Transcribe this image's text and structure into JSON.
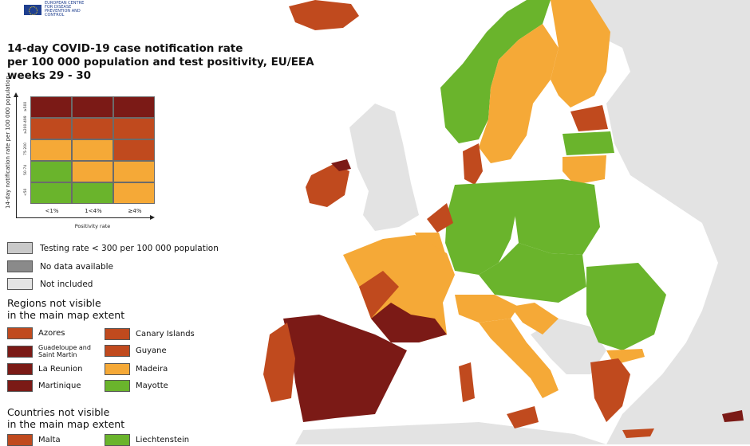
{
  "logo": {
    "text": "EUROPEAN CENTRE FOR DISEASE PREVENTION AND CONTROL"
  },
  "title": {
    "line1": "14-day COVID-19 case notification rate",
    "line2": "per 100 000 population and test positivity, EU/EEA",
    "line3": "weeks 29 - 30"
  },
  "colors": {
    "dark_red": "#7b1a16",
    "red": "#c04a1e",
    "orange": "#f5a937",
    "green": "#6ab42c",
    "grey_testing": "#c9c9c9",
    "grey_nodata": "#8a8a8a",
    "grey_excluded": "#e3e3e3",
    "sea": "#ffffff"
  },
  "matrix": {
    "y_axis_label": "14-day notification rate per 100 000 population",
    "x_axis_label": "Positivity rate",
    "x_ticks": [
      "<1%",
      "1<4%",
      "≥4%"
    ],
    "y_ticks": [
      "≥500",
      "≥200-499",
      "75-200",
      "50-74",
      "<50"
    ],
    "cells": [
      [
        "#7b1a16",
        "#7b1a16",
        "#7b1a16"
      ],
      [
        "#c04a1e",
        "#c04a1e",
        "#c04a1e"
      ],
      [
        "#f5a937",
        "#f5a937",
        "#c04a1e"
      ],
      [
        "#6ab42c",
        "#f5a937",
        "#f5a937"
      ],
      [
        "#6ab42c",
        "#6ab42c",
        "#f5a937"
      ]
    ]
  },
  "legend": {
    "testing": "Testing rate < 300 per 100 000 population",
    "nodata": "No data available",
    "excluded": "Not included"
  },
  "regions_section": {
    "line1": "Regions not visible",
    "line2": "in the main map extent",
    "items": [
      {
        "label": "Azores",
        "color": "#c04a1e"
      },
      {
        "label": "Canary Islands",
        "color": "#c04a1e"
      },
      {
        "label": "Guadeloupe and Saint Martin",
        "color": "#7b1a16"
      },
      {
        "label": "Guyane",
        "color": "#c04a1e"
      },
      {
        "label": "La Reunion",
        "color": "#7b1a16"
      },
      {
        "label": "Madeira",
        "color": "#f5a937"
      },
      {
        "label": "Martinique",
        "color": "#7b1a16"
      },
      {
        "label": "Mayotte",
        "color": "#6ab42c"
      }
    ]
  },
  "countries_section": {
    "line1": "Countries not visible",
    "line2": "in the main map extent",
    "items": [
      {
        "label": "Malta",
        "color": "#c04a1e"
      },
      {
        "label": "Liechtenstein",
        "color": "#6ab42c"
      }
    ]
  }
}
